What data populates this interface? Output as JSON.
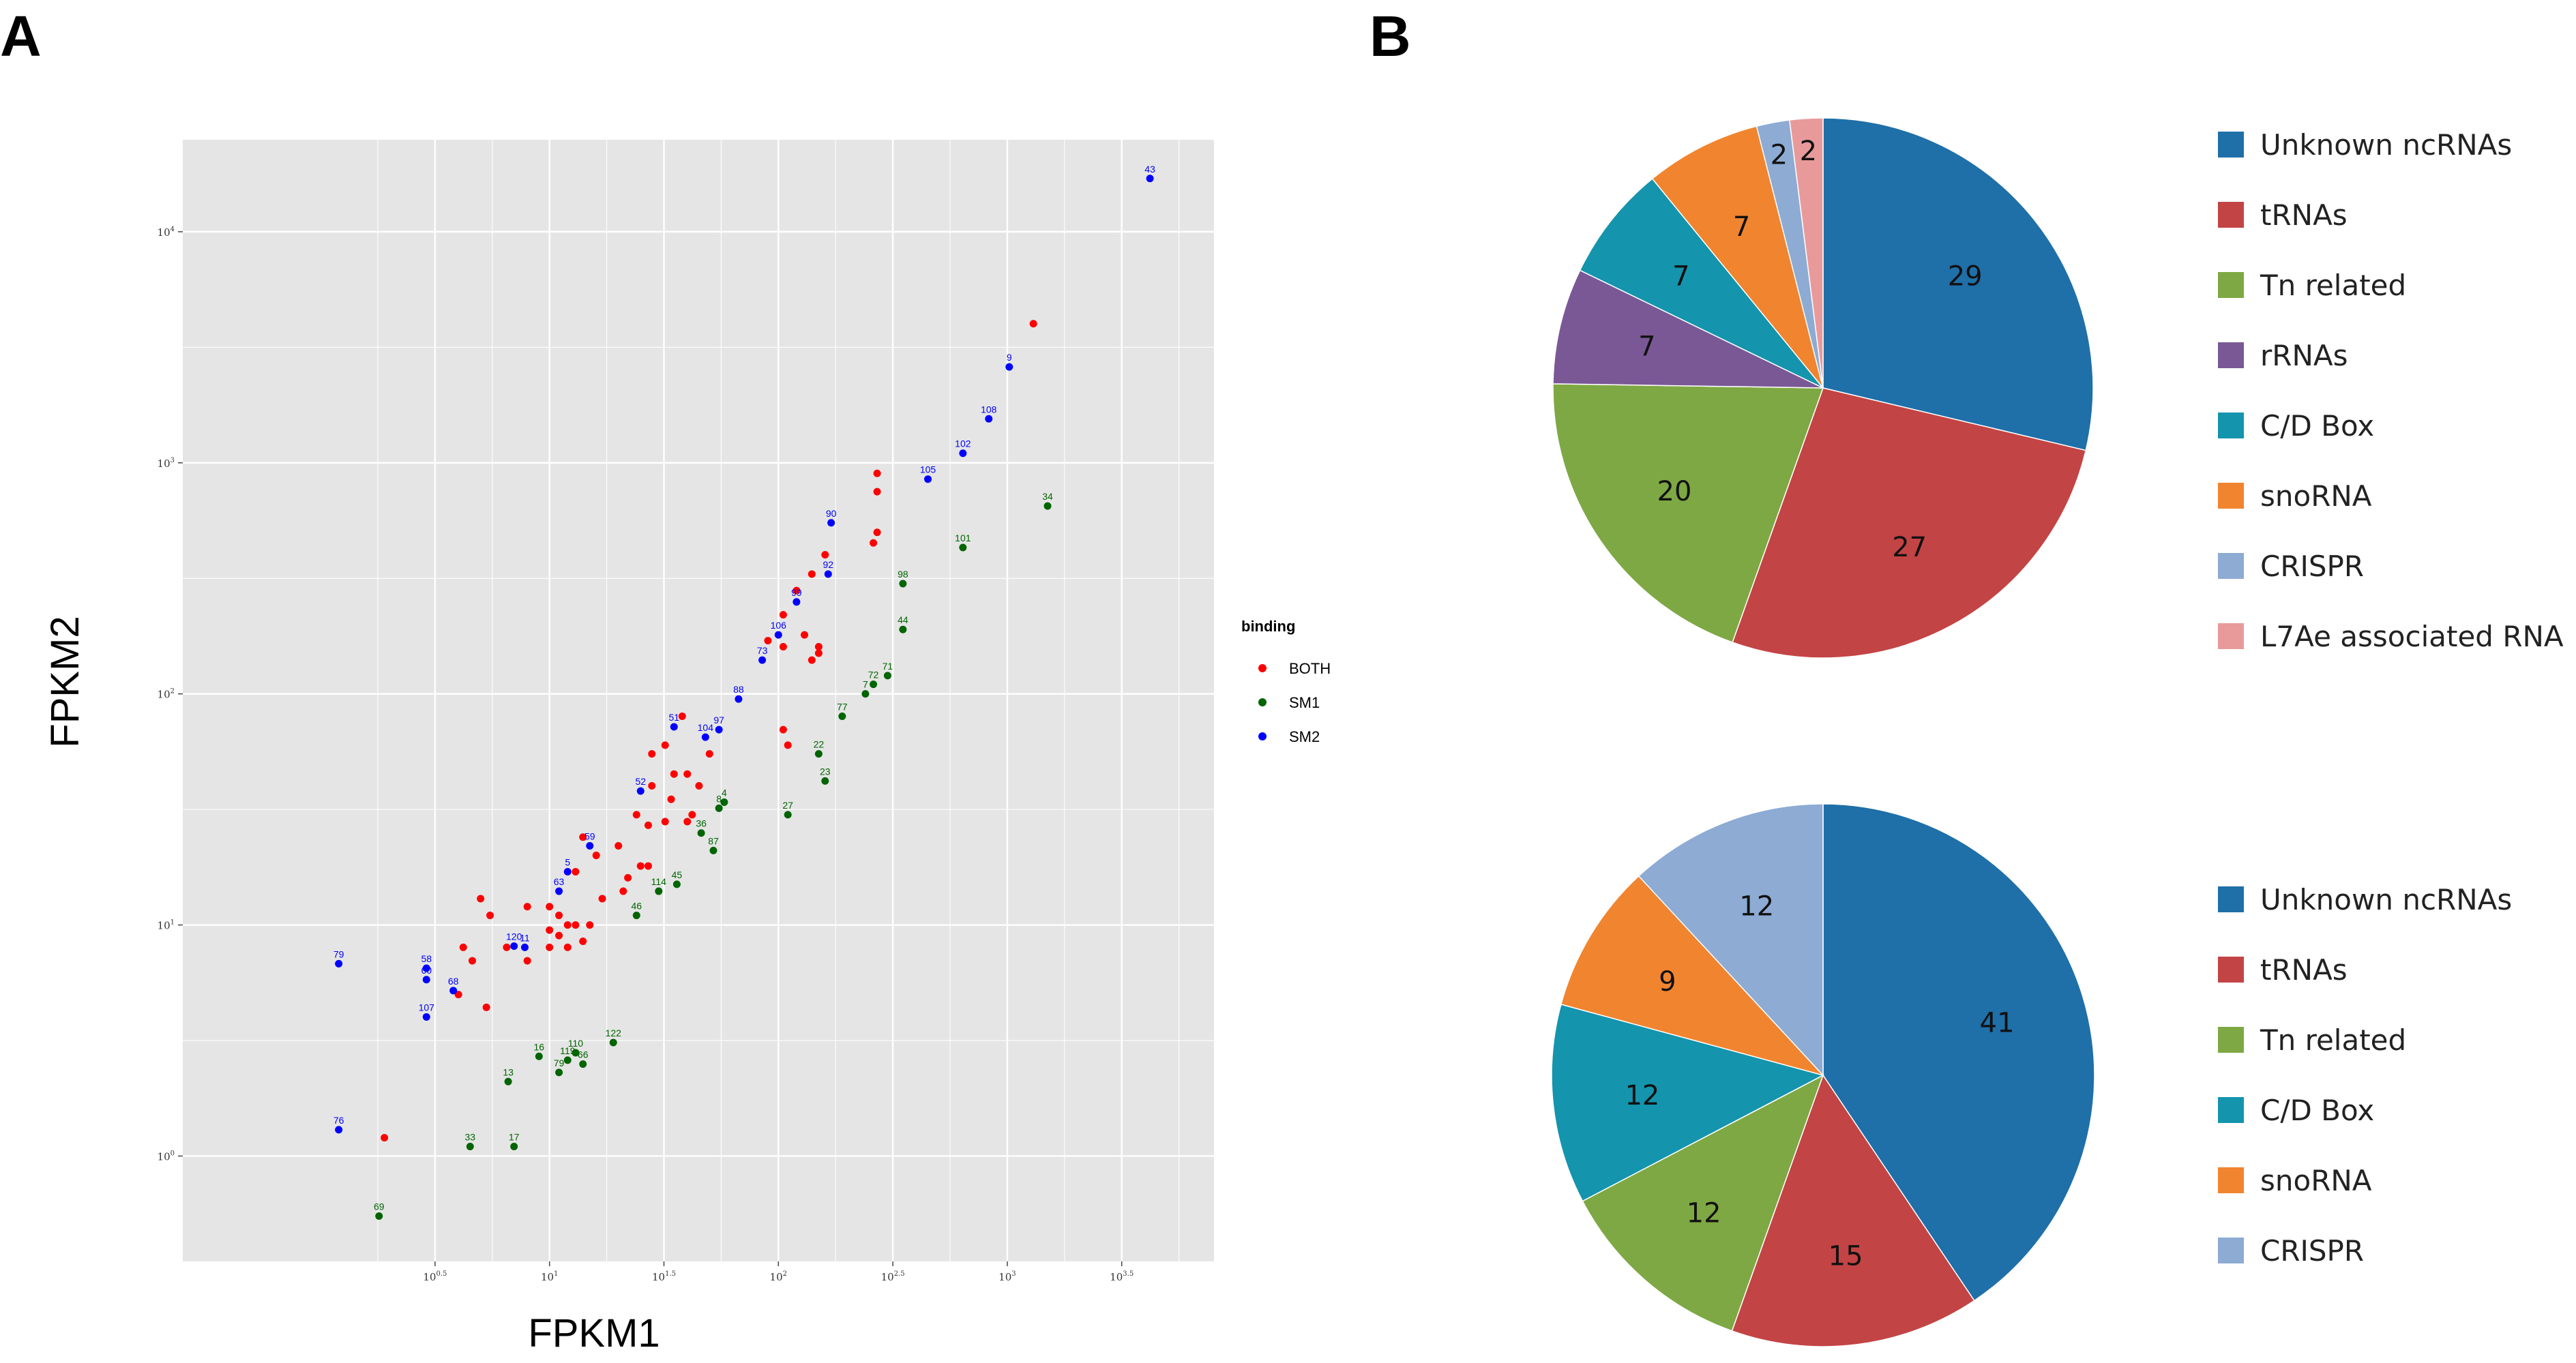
{
  "panels": {
    "a_label": "A",
    "b_label": "B"
  },
  "colors": {
    "BOTH": "#ff0000",
    "SM1": "#006400",
    "SM2": "#0000ff",
    "plot_bg": "#e5e5e5",
    "grid": "#ffffff",
    "Unknown ncRNAs": "#1f6fa8",
    "tRNAs": "#c34444",
    "Tn related": "#7ea843",
    "rRNAs": "#7a5896",
    "C/D Box": "#1494ad",
    "snoRNA": "#f1842f",
    "CRISPR": "#8dabd3",
    "L7Ae associated RNA": "#e89a9a"
  },
  "chart_data": [
    {
      "type": "scatter",
      "xlabel": "FPKM1",
      "ylabel": "FPKM2",
      "log_scale": true,
      "xlim": [
        0.25,
        8000
      ],
      "ylim": [
        0.35,
        25000
      ],
      "x_ticks": [
        {
          "value": 3.1623,
          "base": "10",
          "exp": "0.5"
        },
        {
          "value": 10,
          "base": "10",
          "exp": "1"
        },
        {
          "value": 31.623,
          "base": "10",
          "exp": "1.5"
        },
        {
          "value": 100,
          "base": "10",
          "exp": "2"
        },
        {
          "value": 316.23,
          "base": "10",
          "exp": "2.5"
        },
        {
          "value": 1000,
          "base": "10",
          "exp": "3"
        },
        {
          "value": 3162.3,
          "base": "10",
          "exp": "3.5"
        }
      ],
      "y_ticks": [
        {
          "value": 1,
          "base": "10",
          "exp": "0"
        },
        {
          "value": 10,
          "base": "10",
          "exp": "1"
        },
        {
          "value": 100,
          "base": "10",
          "exp": "2"
        },
        {
          "value": 1000,
          "base": "10",
          "exp": "3"
        },
        {
          "value": 10000,
          "base": "10",
          "exp": "4"
        }
      ],
      "legend_title": "binding",
      "legend_position": "right",
      "grid": true,
      "series": [
        {
          "name": "BOTH",
          "points": [
            {
              "x": 1300,
              "y": 4000
            },
            {
              "x": 270,
              "y": 900
            },
            {
              "x": 270,
              "y": 750
            },
            {
              "x": 270,
              "y": 500
            },
            {
              "x": 260,
              "y": 450
            },
            {
              "x": 160,
              "y": 400
            },
            {
              "x": 140,
              "y": 330
            },
            {
              "x": 120,
              "y": 280
            },
            {
              "x": 105,
              "y": 220
            },
            {
              "x": 130,
              "y": 180
            },
            {
              "x": 150,
              "y": 160
            },
            {
              "x": 150,
              "y": 150
            },
            {
              "x": 140,
              "y": 140
            },
            {
              "x": 90,
              "y": 170
            },
            {
              "x": 105,
              "y": 160
            },
            {
              "x": 105,
              "y": 70
            },
            {
              "x": 110,
              "y": 60
            },
            {
              "x": 38,
              "y": 80
            },
            {
              "x": 32,
              "y": 60
            },
            {
              "x": 28,
              "y": 55
            },
            {
              "x": 35,
              "y": 45
            },
            {
              "x": 40,
              "y": 45
            },
            {
              "x": 45,
              "y": 40
            },
            {
              "x": 50,
              "y": 55
            },
            {
              "x": 28,
              "y": 40
            },
            {
              "x": 34,
              "y": 35
            },
            {
              "x": 42,
              "y": 30
            },
            {
              "x": 24,
              "y": 30
            },
            {
              "x": 27,
              "y": 27
            },
            {
              "x": 32,
              "y": 28
            },
            {
              "x": 40,
              "y": 28
            },
            {
              "x": 20,
              "y": 22
            },
            {
              "x": 25,
              "y": 18
            },
            {
              "x": 14,
              "y": 24
            },
            {
              "x": 16,
              "y": 20
            },
            {
              "x": 22,
              "y": 16
            },
            {
              "x": 27,
              "y": 18
            },
            {
              "x": 21,
              "y": 14
            },
            {
              "x": 17,
              "y": 13
            },
            {
              "x": 13,
              "y": 17
            },
            {
              "x": 8,
              "y": 12
            },
            {
              "x": 10,
              "y": 12
            },
            {
              "x": 11,
              "y": 11
            },
            {
              "x": 12,
              "y": 10
            },
            {
              "x": 10,
              "y": 9.5
            },
            {
              "x": 11,
              "y": 9
            },
            {
              "x": 13,
              "y": 10
            },
            {
              "x": 15,
              "y": 10
            },
            {
              "x": 14,
              "y": 8.5
            },
            {
              "x": 12,
              "y": 8
            },
            {
              "x": 10,
              "y": 8
            },
            {
              "x": 8,
              "y": 7
            },
            {
              "x": 6.5,
              "y": 8
            },
            {
              "x": 5.5,
              "y": 11
            },
            {
              "x": 5,
              "y": 13
            },
            {
              "x": 4.2,
              "y": 8
            },
            {
              "x": 4.6,
              "y": 7
            },
            {
              "x": 4,
              "y": 5
            },
            {
              "x": 5.3,
              "y": 4.4
            },
            {
              "x": 1.9,
              "y": 1.2
            }
          ]
        },
        {
          "name": "SM1",
          "points": [
            {
              "x": 1500,
              "y": 650,
              "label": "34"
            },
            {
              "x": 640,
              "y": 430,
              "label": "101"
            },
            {
              "x": 350,
              "y": 300,
              "label": "98"
            },
            {
              "x": 350,
              "y": 190,
              "label": "44"
            },
            {
              "x": 300,
              "y": 120,
              "label": "71"
            },
            {
              "x": 260,
              "y": 110,
              "label": "72"
            },
            {
              "x": 240,
              "y": 100,
              "label": "7"
            },
            {
              "x": 190,
              "y": 80,
              "label": "77"
            },
            {
              "x": 150,
              "y": 55,
              "label": "22"
            },
            {
              "x": 160,
              "y": 42,
              "label": "23"
            },
            {
              "x": 110,
              "y": 30,
              "label": "27"
            },
            {
              "x": 58,
              "y": 34,
              "label": "4"
            },
            {
              "x": 55,
              "y": 32,
              "label": "8"
            },
            {
              "x": 46,
              "y": 25,
              "label": "36"
            },
            {
              "x": 52,
              "y": 21,
              "label": "87"
            },
            {
              "x": 36,
              "y": 15,
              "label": "45"
            },
            {
              "x": 30,
              "y": 14,
              "label": "114"
            },
            {
              "x": 24,
              "y": 11,
              "label": "46"
            },
            {
              "x": 19,
              "y": 3.1,
              "label": "122"
            },
            {
              "x": 14,
              "y": 2.5,
              "label": "66"
            },
            {
              "x": 13,
              "y": 2.8,
              "label": "110"
            },
            {
              "x": 12,
              "y": 2.6,
              "label": "119"
            },
            {
              "x": 11,
              "y": 2.3,
              "label": "79"
            },
            {
              "x": 9,
              "y": 2.7,
              "label": "16"
            },
            {
              "x": 6.6,
              "y": 2.1,
              "label": "13"
            },
            {
              "x": 7,
              "y": 1.1,
              "label": "17"
            },
            {
              "x": 4.5,
              "y": 1.1,
              "label": "33"
            },
            {
              "x": 1.8,
              "y": 0.55,
              "label": "69"
            }
          ]
        },
        {
          "name": "SM2",
          "points": [
            {
              "x": 4200,
              "y": 17000,
              "label": "43"
            },
            {
              "x": 1020,
              "y": 2600,
              "label": "9"
            },
            {
              "x": 830,
              "y": 1550,
              "label": "108"
            },
            {
              "x": 640,
              "y": 1100,
              "label": "102"
            },
            {
              "x": 450,
              "y": 850,
              "label": "105"
            },
            {
              "x": 170,
              "y": 550,
              "label": "90"
            },
            {
              "x": 165,
              "y": 330,
              "label": "92"
            },
            {
              "x": 120,
              "y": 250,
              "label": "99"
            },
            {
              "x": 100,
              "y": 180,
              "label": "106"
            },
            {
              "x": 85,
              "y": 140,
              "label": "73"
            },
            {
              "x": 67,
              "y": 95,
              "label": "88"
            },
            {
              "x": 55,
              "y": 70,
              "label": "97"
            },
            {
              "x": 48,
              "y": 65,
              "label": "104"
            },
            {
              "x": 35,
              "y": 72,
              "label": "51"
            },
            {
              "x": 25,
              "y": 38,
              "label": "52"
            },
            {
              "x": 15,
              "y": 22,
              "label": "59"
            },
            {
              "x": 12,
              "y": 17,
              "label": "5"
            },
            {
              "x": 11,
              "y": 14,
              "label": "63"
            },
            {
              "x": 7.8,
              "y": 8,
              "label": "11"
            },
            {
              "x": 7,
              "y": 8.1,
              "label": "120"
            },
            {
              "x": 2.9,
              "y": 6.5,
              "label": "58"
            },
            {
              "x": 2.9,
              "y": 5.8,
              "label": "60"
            },
            {
              "x": 2.9,
              "y": 4,
              "label": "107"
            },
            {
              "x": 3.8,
              "y": 5.2,
              "label": "68"
            },
            {
              "x": 1.2,
              "y": 6.8,
              "label": "79"
            },
            {
              "x": 1.2,
              "y": 1.3,
              "label": "76"
            }
          ]
        }
      ]
    },
    {
      "type": "pie",
      "slices": [
        {
          "label": "Unknown ncRNAs",
          "value": 29
        },
        {
          "label": "tRNAs",
          "value": 27
        },
        {
          "label": "Tn related",
          "value": 20
        },
        {
          "label": "rRNAs",
          "value": 7
        },
        {
          "label": "C/D Box",
          "value": 7
        },
        {
          "label": "snoRNA",
          "value": 7
        },
        {
          "label": "CRISPR",
          "value": 2
        },
        {
          "label": "L7Ae associated RNA",
          "value": 2
        }
      ],
      "legend_position": "right"
    },
    {
      "type": "pie",
      "slices": [
        {
          "label": "Unknown ncRNAs",
          "value": 41
        },
        {
          "label": "tRNAs",
          "value": 15
        },
        {
          "label": "Tn related",
          "value": 12
        },
        {
          "label": "C/D Box",
          "value": 12
        },
        {
          "label": "snoRNA",
          "value": 9
        },
        {
          "label": "CRISPR",
          "value": 12
        }
      ],
      "legend_position": "right"
    }
  ]
}
